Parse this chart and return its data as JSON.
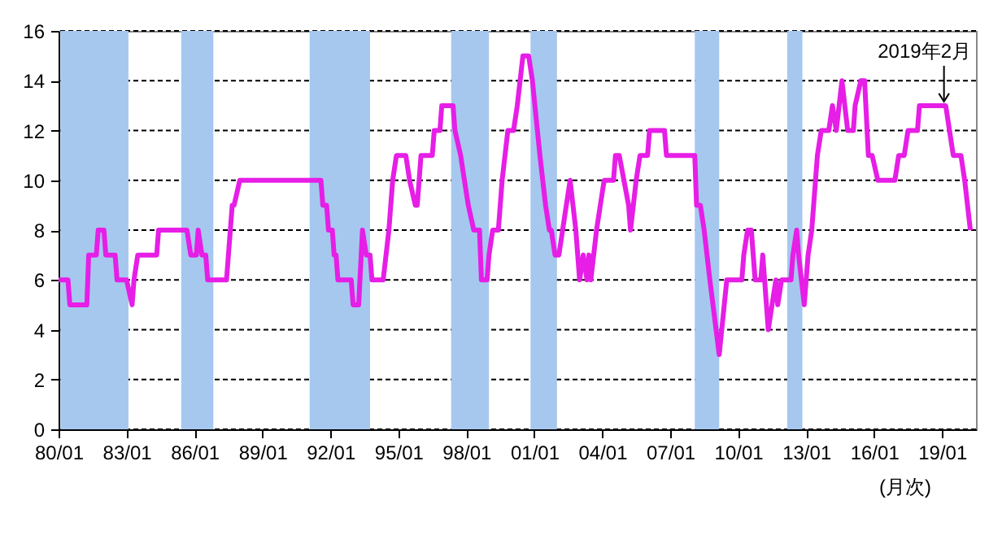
{
  "chart_data": {
    "type": "line",
    "xlabel": "(月次)",
    "x": [
      "1980-01",
      "1980-06",
      "1980-07",
      "1981-04",
      "1981-05",
      "1981-09",
      "1981-10",
      "1982-01",
      "1982-02",
      "1982-07",
      "1982-08",
      "1983-01",
      "1983-04",
      "1983-05",
      "1983-07",
      "1984-05",
      "1984-06",
      "1985-09",
      "1985-11",
      "1986-02",
      "1986-03",
      "1986-05",
      "1986-07",
      "1986-08",
      "1987-06",
      "1987-09",
      "1987-10",
      "1988-01",
      "1991-08",
      "1991-09",
      "1991-11",
      "1991-12",
      "1992-02",
      "1992-03",
      "1992-04",
      "1992-05",
      "1992-12",
      "1993-01",
      "1993-04",
      "1993-06",
      "1993-08",
      "1993-10",
      "1993-11",
      "1994-05",
      "1994-08",
      "1994-10",
      "1994-12",
      "1995-05",
      "1995-07",
      "1995-10",
      "1995-11",
      "1996-01",
      "1996-07",
      "1996-08",
      "1996-11",
      "1996-12",
      "1997-06",
      "1997-07",
      "1997-10",
      "1997-12",
      "1998-02",
      "1998-05",
      "1998-08",
      "1998-09",
      "1998-12",
      "1999-01",
      "1999-03",
      "1999-06",
      "1999-08",
      "1999-11",
      "2000-02",
      "2000-04",
      "2000-07",
      "2000-10",
      "2000-12",
      "2001-04",
      "2001-07",
      "2001-09",
      "2001-10",
      "2001-12",
      "2002-02",
      "2002-06",
      "2002-08",
      "2002-11",
      "2003-01",
      "2003-03",
      "2003-05",
      "2003-06",
      "2003-07",
      "2003-10",
      "2003-12",
      "2004-02",
      "2004-07",
      "2004-08",
      "2004-10",
      "2005-03",
      "2005-04",
      "2005-07",
      "2005-09",
      "2006-01",
      "2006-02",
      "2006-10",
      "2006-11",
      "2008-02",
      "2008-03",
      "2008-05",
      "2008-07",
      "2008-10",
      "2009-03",
      "2009-07",
      "2010-03",
      "2010-04",
      "2010-06",
      "2010-08",
      "2010-10",
      "2011-01",
      "2011-02",
      "2011-05",
      "2011-07",
      "2011-09",
      "2011-10",
      "2011-12",
      "2012-05",
      "2012-06",
      "2012-08",
      "2012-09",
      "2012-12",
      "2013-02",
      "2013-04",
      "2013-07",
      "2013-09",
      "2014-01",
      "2014-03",
      "2014-05",
      "2014-08",
      "2014-11",
      "2015-02",
      "2015-03",
      "2015-06",
      "2015-08",
      "2015-10",
      "2015-12",
      "2016-03",
      "2016-12",
      "2017-02",
      "2017-05",
      "2017-07",
      "2017-12",
      "2018-01",
      "2019-03",
      "2019-05",
      "2019-07",
      "2019-11",
      "2020-01",
      "2020-04"
    ],
    "series": [
      {
        "color": "#e61ee6",
        "values": [
          6,
          6,
          5,
          5,
          7,
          7,
          8,
          8,
          7,
          7,
          6,
          6,
          5,
          6,
          7,
          7,
          8,
          8,
          7,
          7,
          8,
          7,
          7,
          6,
          6,
          9,
          9,
          10,
          10,
          9,
          9,
          8,
          8,
          7,
          7,
          6,
          6,
          5,
          5,
          8,
          7,
          7,
          6,
          6,
          8,
          10,
          11,
          11,
          10,
          9,
          9,
          11,
          11,
          12,
          12,
          13,
          13,
          12,
          11,
          10,
          9,
          8,
          8,
          6,
          6,
          7,
          8,
          8,
          10,
          12,
          12,
          13,
          15,
          15,
          14,
          11,
          9,
          8,
          8,
          7,
          7,
          9,
          10,
          8,
          6,
          7,
          6,
          7,
          6,
          8,
          9,
          10,
          10,
          11,
          11,
          9,
          8,
          10,
          11,
          11,
          12,
          12,
          11,
          11,
          9,
          9,
          8,
          6,
          3,
          6,
          6,
          7,
          8,
          8,
          6,
          6,
          7,
          4,
          5,
          6,
          5,
          6,
          6,
          7,
          8,
          7,
          5,
          7,
          8,
          11,
          12,
          12,
          13,
          12,
          14,
          12,
          12,
          13,
          14,
          14,
          11,
          11,
          10,
          10,
          11,
          11,
          12,
          12,
          13,
          13,
          12,
          11,
          11,
          10,
          8
        ]
      }
    ],
    "xlim": [
      "1980-01",
      "2020-07"
    ],
    "xticks": [
      {
        "value": "1980-01",
        "label": "80/01"
      },
      {
        "value": "1983-01",
        "label": "83/01"
      },
      {
        "value": "1986-01",
        "label": "86/01"
      },
      {
        "value": "1989-01",
        "label": "89/01"
      },
      {
        "value": "1992-01",
        "label": "92/01"
      },
      {
        "value": "1995-01",
        "label": "95/01"
      },
      {
        "value": "1998-01",
        "label": "98/01"
      },
      {
        "value": "2001-01",
        "label": "01/01"
      },
      {
        "value": "2004-01",
        "label": "04/01"
      },
      {
        "value": "2007-01",
        "label": "07/01"
      },
      {
        "value": "2010-01",
        "label": "10/01"
      },
      {
        "value": "2013-01",
        "label": "13/01"
      },
      {
        "value": "2016-01",
        "label": "16/01"
      },
      {
        "value": "2019-01",
        "label": "19/01"
      }
    ],
    "ylim": [
      0,
      16
    ],
    "yticks": [
      0,
      2,
      4,
      6,
      8,
      10,
      12,
      14,
      16
    ],
    "grid": "y",
    "bands": [
      {
        "axis": "x",
        "from": "1980-02",
        "to": "1983-02",
        "color": "#a6c8ef"
      },
      {
        "axis": "x",
        "from": "1985-06",
        "to": "1986-11",
        "color": "#a6c8ef"
      },
      {
        "axis": "x",
        "from": "1991-02",
        "to": "1993-10",
        "color": "#a6c8ef"
      },
      {
        "axis": "x",
        "from": "1997-05",
        "to": "1999-01",
        "color": "#a6c8ef"
      },
      {
        "axis": "x",
        "from": "2000-11",
        "to": "2002-01",
        "color": "#a6c8ef"
      },
      {
        "axis": "x",
        "from": "2008-02",
        "to": "2009-03",
        "color": "#a6c8ef"
      },
      {
        "axis": "x",
        "from": "2012-03",
        "to": "2012-11",
        "color": "#a6c8ef"
      }
    ],
    "annotations": [
      {
        "text": "2019年2月",
        "x": "2019-02",
        "y": 13
      }
    ]
  }
}
